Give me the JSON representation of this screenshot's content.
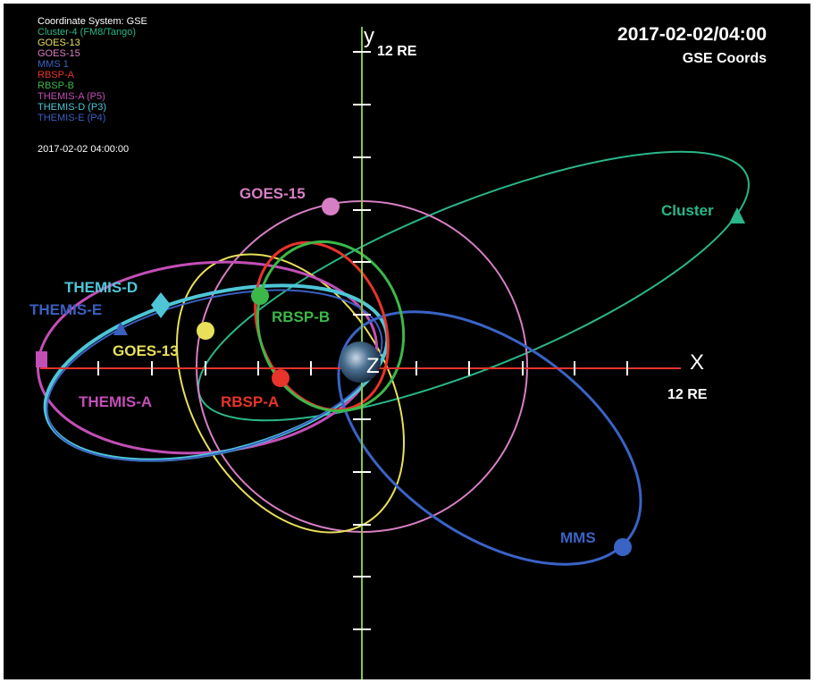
{
  "header": {
    "title": "2017-02-02/04:00",
    "subtitle": "GSE Coords"
  },
  "legend": {
    "heading": "Coordinate System: GSE",
    "items": [
      {
        "name": "Cluster-4 (FM8/Tango)",
        "color": "#2bb58a"
      },
      {
        "name": "GOES-13",
        "color": "#e8e05a"
      },
      {
        "name": "GOES-15",
        "color": "#d77fc4"
      },
      {
        "name": "MMS 1",
        "color": "#3a63c6"
      },
      {
        "name": "RBSP-A",
        "color": "#e8342a"
      },
      {
        "name": "RBSP-B",
        "color": "#3cb84a"
      },
      {
        "name": "THEMIS-A (P5)",
        "color": "#c24fb6"
      },
      {
        "name": "THEMIS-D (P3)",
        "color": "#4ec6d6"
      },
      {
        "name": "THEMIS-E (P4)",
        "color": "#3b5fc0"
      }
    ],
    "time": "2017-02-02  04:00:00"
  },
  "axes": {
    "x": "X",
    "x_extent": "12 RE",
    "y": "y",
    "y_extent": "12 RE",
    "z": "Z"
  },
  "labels": {
    "goes15": "GOES-15",
    "cluster": "Cluster",
    "themis_d": "THEMIS-D",
    "themis_e": "THEMIS-E",
    "goes13": "GOES-13",
    "rbsp_b": "RBSP-B",
    "themis_a": "THEMIS-A",
    "rbsp_a": "RBSP-A",
    "mms": "MMS"
  }
}
